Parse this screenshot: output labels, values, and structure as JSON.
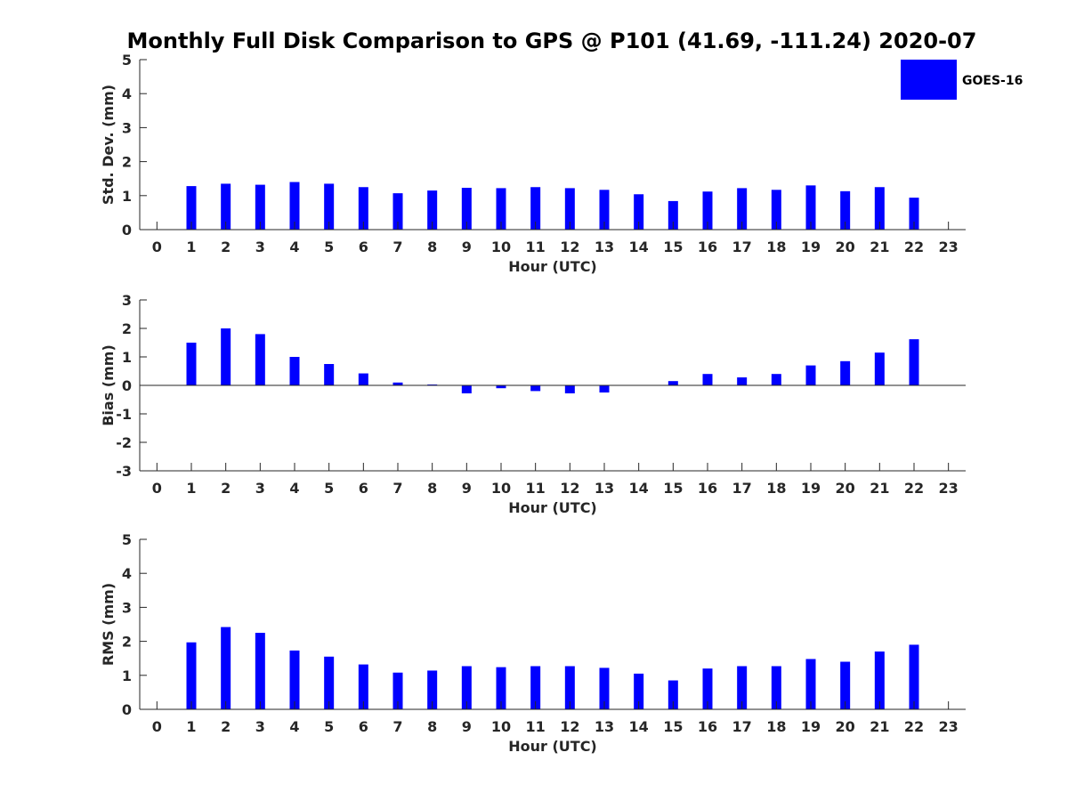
{
  "chart_data": [
    {
      "type": "bar",
      "title": "Monthly Full Disk Comparison to GPS @ P101 (41.69, -111.24) 2020-07",
      "xlabel": "Hour (UTC)",
      "ylabel": "Std. Dev. (mm)",
      "xlim": [
        -0.5,
        23.5
      ],
      "ylim": [
        0,
        5
      ],
      "yticks": [
        0,
        1,
        2,
        3,
        4,
        5
      ],
      "categories": [
        "0",
        "1",
        "2",
        "3",
        "4",
        "5",
        "6",
        "7",
        "8",
        "9",
        "10",
        "11",
        "12",
        "13",
        "14",
        "15",
        "16",
        "17",
        "18",
        "19",
        "20",
        "21",
        "22",
        "23"
      ],
      "series": [
        {
          "name": "GOES-16",
          "color": "#0000ff",
          "values": [
            null,
            1.28,
            1.35,
            1.32,
            1.4,
            1.35,
            1.25,
            1.07,
            1.15,
            1.23,
            1.22,
            1.25,
            1.22,
            1.17,
            1.04,
            0.84,
            1.12,
            1.22,
            1.17,
            1.3,
            1.13,
            1.25,
            0.94,
            null
          ]
        }
      ],
      "legend": {
        "position": "top-right",
        "entries": [
          "GOES-16"
        ]
      },
      "grid": false
    },
    {
      "type": "bar",
      "xlabel": "Hour (UTC)",
      "ylabel": "Bias (mm)",
      "xlim": [
        -0.5,
        23.5
      ],
      "ylim": [
        -3,
        3
      ],
      "yticks": [
        -3,
        -2,
        -1,
        0,
        1,
        2,
        3
      ],
      "zero_line": true,
      "categories": [
        "0",
        "1",
        "2",
        "3",
        "4",
        "5",
        "6",
        "7",
        "8",
        "9",
        "10",
        "11",
        "12",
        "13",
        "14",
        "15",
        "16",
        "17",
        "18",
        "19",
        "20",
        "21",
        "22",
        "23"
      ],
      "series": [
        {
          "name": "GOES-16",
          "color": "#0000ff",
          "values": [
            null,
            1.5,
            2.0,
            1.8,
            1.0,
            0.75,
            0.42,
            0.1,
            0.03,
            -0.28,
            -0.1,
            -0.2,
            -0.28,
            -0.25,
            0.0,
            0.15,
            0.4,
            0.28,
            0.4,
            0.7,
            0.85,
            1.15,
            1.62,
            null
          ]
        }
      ],
      "grid": false
    },
    {
      "type": "bar",
      "xlabel": "Hour (UTC)",
      "ylabel": "RMS (mm)",
      "xlim": [
        -0.5,
        23.5
      ],
      "ylim": [
        0,
        5
      ],
      "yticks": [
        0,
        1,
        2,
        3,
        4,
        5
      ],
      "categories": [
        "0",
        "1",
        "2",
        "3",
        "4",
        "5",
        "6",
        "7",
        "8",
        "9",
        "10",
        "11",
        "12",
        "13",
        "14",
        "15",
        "16",
        "17",
        "18",
        "19",
        "20",
        "21",
        "22",
        "23"
      ],
      "series": [
        {
          "name": "GOES-16",
          "color": "#0000ff",
          "values": [
            null,
            1.97,
            2.42,
            2.25,
            1.73,
            1.55,
            1.32,
            1.08,
            1.14,
            1.27,
            1.24,
            1.27,
            1.27,
            1.22,
            1.05,
            0.85,
            1.2,
            1.27,
            1.27,
            1.48,
            1.4,
            1.7,
            1.9,
            null
          ]
        }
      ],
      "grid": false
    }
  ]
}
